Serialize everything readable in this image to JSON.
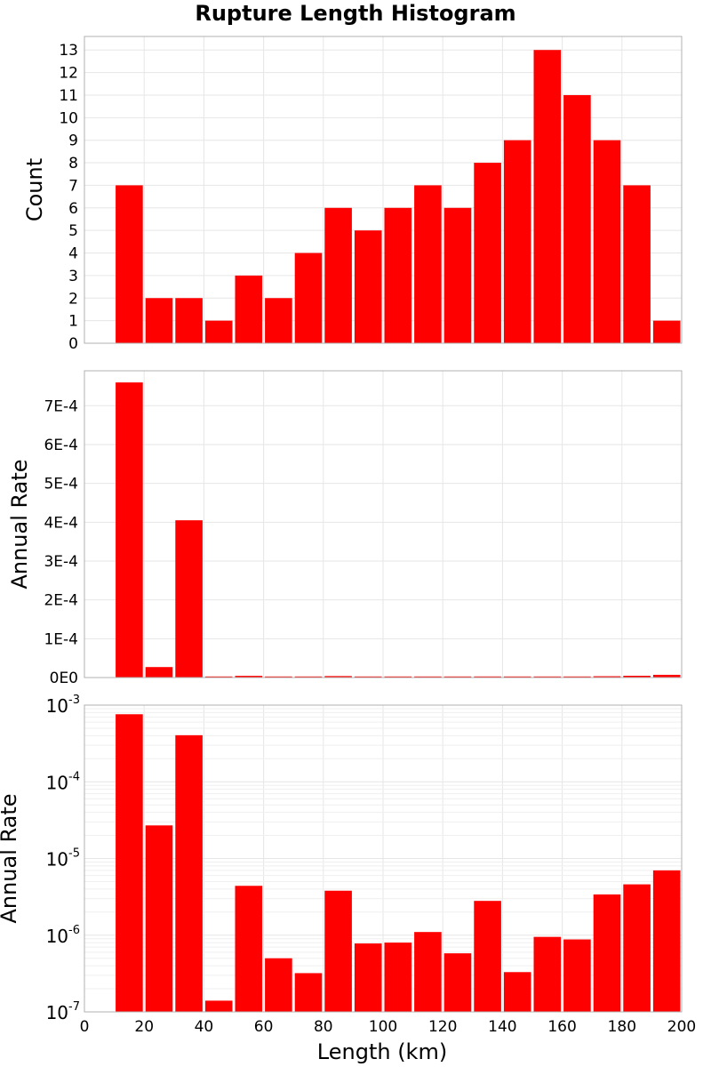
{
  "chart_data": [
    {
      "type": "bar",
      "title": "Rupture Length Histogram",
      "xlabel": "",
      "ylabel": "Count",
      "xlim": [
        0,
        200
      ],
      "ylim": [
        0,
        13.6
      ],
      "yscale": "linear",
      "bin_width": 10,
      "x": [
        15,
        25,
        35,
        45,
        55,
        65,
        75,
        85,
        95,
        105,
        115,
        125,
        135,
        145,
        155,
        165,
        175,
        185,
        195
      ],
      "values": [
        7,
        2,
        2,
        1,
        3,
        2,
        4,
        6,
        5,
        6,
        7,
        6,
        8,
        9,
        13,
        11,
        9,
        7,
        1
      ],
      "y_ticks": [
        0,
        1,
        2,
        3,
        4,
        5,
        6,
        7,
        8,
        9,
        10,
        11,
        12,
        13
      ],
      "y_tick_labels": [
        "0",
        "1",
        "2",
        "3",
        "4",
        "5",
        "6",
        "7",
        "8",
        "9",
        "10",
        "11",
        "12",
        "13"
      ],
      "bar_color": "#ff0000",
      "grid": true
    },
    {
      "type": "bar",
      "title": "",
      "xlabel": "",
      "ylabel": "Annual Rate",
      "xlim": [
        0,
        200
      ],
      "ylim": [
        0,
        0.00079
      ],
      "yscale": "linear",
      "bin_width": 10,
      "x": [
        15,
        25,
        35,
        45,
        55,
        65,
        75,
        85,
        95,
        105,
        115,
        125,
        135,
        145,
        155,
        165,
        175,
        185,
        195
      ],
      "values": [
        0.00076,
        2.7e-05,
        0.000405,
        1.4e-07,
        4.4e-06,
        5e-07,
        3.2e-07,
        3.8e-06,
        7.8e-07,
        8e-07,
        1.1e-06,
        5.8e-07,
        2.8e-06,
        3.3e-07,
        9.5e-07,
        8.8e-07,
        3.4e-06,
        4.6e-06,
        7e-06
      ],
      "y_ticks": [
        0,
        0.0001,
        0.0002,
        0.0003,
        0.0004,
        0.0005,
        0.0006,
        0.0007
      ],
      "y_tick_labels": [
        "0E0",
        "1E-4",
        "2E-4",
        "3E-4",
        "4E-4",
        "5E-4",
        "6E-4",
        "7E-4"
      ],
      "bar_color": "#ff0000",
      "grid": true
    },
    {
      "type": "bar",
      "title": "",
      "xlabel": "Length (km)",
      "ylabel": "Annual Rate",
      "xlim": [
        0,
        200
      ],
      "ylim": [
        1e-07,
        0.001
      ],
      "yscale": "log",
      "bin_width": 10,
      "x": [
        15,
        25,
        35,
        45,
        55,
        65,
        75,
        85,
        95,
        105,
        115,
        125,
        135,
        145,
        155,
        165,
        175,
        185,
        195
      ],
      "values": [
        0.00076,
        2.7e-05,
        0.000405,
        1.4e-07,
        4.4e-06,
        5e-07,
        3.2e-07,
        3.8e-06,
        7.8e-07,
        8e-07,
        1.1e-06,
        5.8e-07,
        2.8e-06,
        3.3e-07,
        9.5e-07,
        8.8e-07,
        3.4e-06,
        4.6e-06,
        7e-06
      ],
      "y_ticks": [
        -7,
        -6,
        -5,
        -4,
        -3
      ],
      "y_tick_base": "10",
      "y_tick_exponents": [
        "-7",
        "-6",
        "-5",
        "-4",
        "-3"
      ],
      "x_ticks": [
        0,
        20,
        40,
        60,
        80,
        100,
        120,
        140,
        160,
        180,
        200
      ],
      "x_tick_labels": [
        "0",
        "20",
        "40",
        "60",
        "80",
        "100",
        "120",
        "140",
        "160",
        "180",
        "200"
      ],
      "bar_color": "#ff0000",
      "grid": true
    }
  ]
}
